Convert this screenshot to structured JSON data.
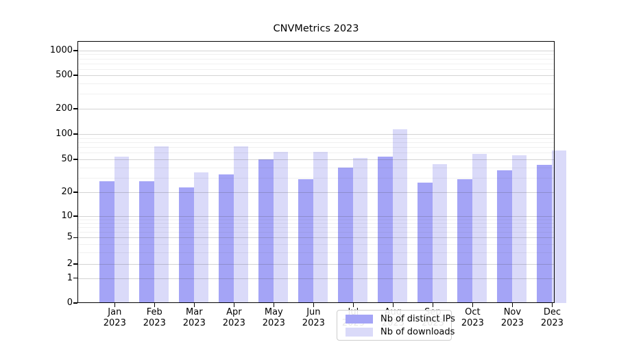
{
  "title": "CNVMetrics 2023",
  "chart_data": {
    "type": "bar",
    "title": "CNVMetrics 2023",
    "categories": [
      "Jan",
      "Feb",
      "Mar",
      "Apr",
      "May",
      "Jun",
      "Jul",
      "Aug",
      "Sep",
      "Oct",
      "Nov",
      "Dec"
    ],
    "category_year": "2023",
    "series": [
      {
        "name": "Nb of distinct IPs",
        "color": "#a4a4f6",
        "values": [
          27,
          27,
          23,
          33,
          50,
          29,
          40,
          54,
          26,
          29,
          37,
          43
        ]
      },
      {
        "name": "Nb of downloads",
        "color": "#dadaf9",
        "values": [
          54,
          72,
          35,
          72,
          61,
          61,
          52,
          115,
          44,
          58,
          56,
          64
        ]
      }
    ],
    "y_ticks": [
      0,
      1,
      2,
      5,
      10,
      20,
      50,
      100,
      200,
      500,
      1000
    ],
    "y_minor_gridlines": [
      3,
      4,
      6,
      7,
      8,
      9,
      30,
      40,
      60,
      70,
      80,
      90,
      300,
      400,
      600,
      700,
      800,
      900
    ],
    "y_scale": "log with compressed region below 10 and 0 baseline",
    "ylim": [
      0,
      1200
    ],
    "grid": true,
    "legend_position": "lower center",
    "xlabel": "",
    "ylabel": ""
  },
  "legend": {
    "items": [
      {
        "label": "Nb of distinct IPs"
      },
      {
        "label": "Nb of downloads"
      }
    ]
  },
  "colors": {
    "bar_distinct_ips": "#a4a4f6",
    "bar_downloads": "#dadaf9",
    "axis": "#000000",
    "grid_major": "#cfcfcf",
    "grid_minor": "#ededed",
    "legend_border": "#cccccc",
    "background": "#ffffff"
  }
}
